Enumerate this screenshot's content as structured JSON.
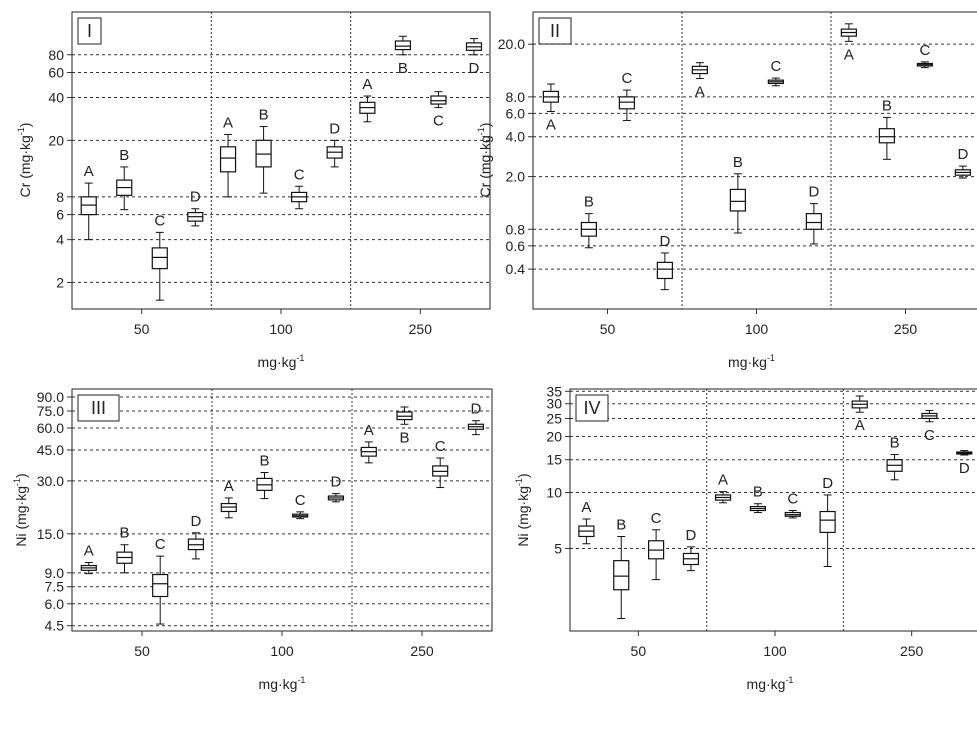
{
  "chart_data": [
    {
      "type": "boxplot",
      "panel_label": "I",
      "title": "",
      "xlabel": "mg·kg",
      "xlabel_sup": "-1",
      "ylabel": "Cr (mg·kg",
      "ylabel_sup": "-1",
      "ylabel_tail": ")",
      "yscale": "log",
      "ylim": [
        1.3,
        160
      ],
      "yticks": [
        {
          "v": 2,
          "label": "2"
        },
        {
          "v": 4,
          "label": "4"
        },
        {
          "v": 6,
          "label": "6"
        },
        {
          "v": 8,
          "label": "8"
        },
        {
          "v": 20,
          "label": "20"
        },
        {
          "v": 40,
          "label": "40"
        },
        {
          "v": 60,
          "label": "60"
        },
        {
          "v": 80,
          "label": "80"
        }
      ],
      "groups": [
        "50",
        "100",
        "250"
      ],
      "grid": "dashed",
      "boxes": [
        {
          "group": "50",
          "pos": 0,
          "letter": "A",
          "whislo": 4,
          "q1": 6,
          "med": 7,
          "q3": 8,
          "whishi": 10
        },
        {
          "group": "50",
          "pos": 1,
          "letter": "B",
          "whislo": 6.5,
          "q1": 8.2,
          "med": 9.3,
          "q3": 10.5,
          "whishi": 13
        },
        {
          "group": "50",
          "pos": 2,
          "letter": "C",
          "whislo": 1.5,
          "q1": 2.5,
          "med": 3,
          "q3": 3.5,
          "whishi": 4.5
        },
        {
          "group": "50",
          "pos": 3,
          "letter": "D",
          "whislo": 5,
          "q1": 5.4,
          "med": 5.8,
          "q3": 6.2,
          "whishi": 6.6
        },
        {
          "group": "100",
          "pos": 0,
          "letter": "A",
          "whislo": 8,
          "q1": 12,
          "med": 15,
          "q3": 18,
          "whishi": 22
        },
        {
          "group": "100",
          "pos": 1,
          "letter": "B",
          "whislo": 8.5,
          "q1": 13,
          "med": 16,
          "q3": 20,
          "whishi": 25
        },
        {
          "group": "100",
          "pos": 2,
          "letter": "C",
          "whislo": 6.6,
          "q1": 7.4,
          "med": 8,
          "q3": 8.6,
          "whishi": 9.5
        },
        {
          "group": "100",
          "pos": 3,
          "letter": "D",
          "whislo": 13,
          "q1": 15,
          "med": 16.5,
          "q3": 18,
          "whishi": 20
        },
        {
          "group": "250",
          "pos": 0,
          "letter": "A",
          "whislo": 27,
          "q1": 31,
          "med": 34,
          "q3": 37,
          "whishi": 41
        },
        {
          "group": "250",
          "pos": 1,
          "letter": "B",
          "whislo": 80,
          "q1": 87,
          "med": 92,
          "q3": 100,
          "whishi": 108
        },
        {
          "group": "250",
          "pos": 2,
          "letter": "C",
          "whislo": 34,
          "q1": 36,
          "med": 38,
          "q3": 41,
          "whishi": 44
        },
        {
          "group": "250",
          "pos": 3,
          "letter": "D",
          "whislo": 80,
          "q1": 86,
          "med": 91,
          "q3": 97,
          "whishi": 104
        }
      ]
    },
    {
      "type": "boxplot",
      "panel_label": "II",
      "title": "",
      "xlabel": "mg·kg",
      "xlabel_sup": "-1",
      "ylabel": "Cr (mg·kg",
      "ylabel_sup": "-1",
      "ylabel_tail": ")",
      "yscale": "log",
      "ylim": [
        0.2,
        35
      ],
      "yticks": [
        {
          "v": 0.4,
          "label": "0.4"
        },
        {
          "v": 0.6,
          "label": "0.6"
        },
        {
          "v": 0.8,
          "label": "0.8"
        },
        {
          "v": 2,
          "label": "2.0"
        },
        {
          "v": 4,
          "label": "4.0"
        },
        {
          "v": 6,
          "label": "6.0"
        },
        {
          "v": 8,
          "label": "8.0"
        },
        {
          "v": 20,
          "label": "20.0"
        }
      ],
      "groups": [
        "50",
        "100",
        "250"
      ],
      "grid": "dashed",
      "boxes": [
        {
          "group": "50",
          "pos": 0,
          "letter": "A",
          "whislo": 6.2,
          "q1": 7.3,
          "med": 8,
          "q3": 8.8,
          "whishi": 10
        },
        {
          "group": "50",
          "pos": 1,
          "letter": "B",
          "whislo": 0.58,
          "q1": 0.71,
          "med": 0.8,
          "q3": 0.9,
          "whishi": 1.05
        },
        {
          "group": "50",
          "pos": 2,
          "letter": "C",
          "whislo": 5.3,
          "q1": 6.5,
          "med": 7.3,
          "q3": 8,
          "whishi": 9
        },
        {
          "group": "50",
          "pos": 3,
          "letter": "D",
          "whislo": 0.28,
          "q1": 0.34,
          "med": 0.4,
          "q3": 0.45,
          "whishi": 0.53
        },
        {
          "group": "100",
          "pos": 0,
          "letter": "A",
          "whislo": 11,
          "q1": 12,
          "med": 12.8,
          "q3": 13.6,
          "whishi": 14.5
        },
        {
          "group": "100",
          "pos": 1,
          "letter": "B",
          "whislo": 0.75,
          "q1": 1.1,
          "med": 1.3,
          "q3": 1.6,
          "whishi": 2.1
        },
        {
          "group": "100",
          "pos": 2,
          "letter": "C",
          "whislo": 9.7,
          "q1": 10.1,
          "med": 10.4,
          "q3": 10.7,
          "whishi": 11.1
        },
        {
          "group": "100",
          "pos": 3,
          "letter": "D",
          "whislo": 0.62,
          "q1": 0.8,
          "med": 0.9,
          "q3": 1.05,
          "whishi": 1.25
        },
        {
          "group": "250",
          "pos": 0,
          "letter": "A",
          "whislo": 21,
          "q1": 23,
          "med": 24.5,
          "q3": 26,
          "whishi": 28.5
        },
        {
          "group": "250",
          "pos": 1,
          "letter": "B",
          "whislo": 2.7,
          "q1": 3.6,
          "med": 4,
          "q3": 4.6,
          "whishi": 5.6
        },
        {
          "group": "250",
          "pos": 2,
          "letter": "C",
          "whislo": 13.3,
          "q1": 13.7,
          "med": 14,
          "q3": 14.3,
          "whishi": 14.7
        },
        {
          "group": "250",
          "pos": 3,
          "letter": "D",
          "whislo": 1.95,
          "q1": 2.05,
          "med": 2.15,
          "q3": 2.25,
          "whishi": 2.4
        }
      ]
    },
    {
      "type": "boxplot",
      "panel_label": "III",
      "title": "",
      "xlabel": "mg·kg",
      "xlabel_sup": "-1",
      "ylabel": "Ni (mg·kg",
      "ylabel_sup": "-1",
      "ylabel_tail": ")",
      "yscale": "log",
      "ylim": [
        4.2,
        100
      ],
      "yticks": [
        {
          "v": 4.5,
          "label": "4.5"
        },
        {
          "v": 6,
          "label": "6.0"
        },
        {
          "v": 7.5,
          "label": "7.5"
        },
        {
          "v": 9,
          "label": "9.0"
        },
        {
          "v": 15,
          "label": "15.0"
        },
        {
          "v": 30,
          "label": "30.0"
        },
        {
          "v": 45,
          "label": "45.0"
        },
        {
          "v": 60,
          "label": "60.0"
        },
        {
          "v": 75,
          "label": "75.0"
        },
        {
          "v": 90,
          "label": "90.0"
        }
      ],
      "groups": [
        "50",
        "100",
        "250"
      ],
      "grid": "dashed",
      "boxes": [
        {
          "group": "50",
          "pos": 0,
          "letter": "A",
          "whislo": 8.9,
          "q1": 9.3,
          "med": 9.6,
          "q3": 9.9,
          "whishi": 10.3
        },
        {
          "group": "50",
          "pos": 1,
          "letter": "B",
          "whislo": 9,
          "q1": 10.2,
          "med": 11,
          "q3": 11.8,
          "whishi": 13
        },
        {
          "group": "50",
          "pos": 2,
          "letter": "C",
          "whislo": 4.6,
          "q1": 6.6,
          "med": 7.8,
          "q3": 8.8,
          "whishi": 11.2
        },
        {
          "group": "50",
          "pos": 3,
          "letter": "D",
          "whislo": 10.8,
          "q1": 12.2,
          "med": 13,
          "q3": 14,
          "whishi": 15.2
        },
        {
          "group": "100",
          "pos": 0,
          "letter": "A",
          "whislo": 18.5,
          "q1": 20.1,
          "med": 21.3,
          "q3": 22.3,
          "whishi": 24
        },
        {
          "group": "100",
          "pos": 1,
          "letter": "B",
          "whislo": 23.8,
          "q1": 26.5,
          "med": 28.5,
          "q3": 31,
          "whishi": 33.5
        },
        {
          "group": "100",
          "pos": 2,
          "letter": "C",
          "whislo": 18.3,
          "q1": 18.7,
          "med": 19,
          "q3": 19.4,
          "whishi": 20
        },
        {
          "group": "100",
          "pos": 3,
          "letter": "D",
          "whislo": 22.8,
          "q1": 23.4,
          "med": 24,
          "q3": 24.6,
          "whishi": 25.4
        },
        {
          "group": "250",
          "pos": 0,
          "letter": "A",
          "whislo": 38,
          "q1": 41.5,
          "med": 44,
          "q3": 46.5,
          "whishi": 50
        },
        {
          "group": "250",
          "pos": 1,
          "letter": "B",
          "whislo": 63,
          "q1": 67,
          "med": 70,
          "q3": 74,
          "whishi": 79
        },
        {
          "group": "250",
          "pos": 2,
          "letter": "C",
          "whislo": 27.5,
          "q1": 32,
          "med": 34,
          "q3": 36.5,
          "whishi": 40.5
        },
        {
          "group": "250",
          "pos": 3,
          "letter": "D",
          "whislo": 55,
          "q1": 59,
          "med": 61,
          "q3": 63,
          "whishi": 66
        }
      ]
    },
    {
      "type": "boxplot",
      "panel_label": "IV",
      "title": "",
      "xlabel": "mg·kg",
      "xlabel_sup": "-1",
      "ylabel": "Ni (mg·kg",
      "ylabel_sup": "-1",
      "ylabel_tail": ")",
      "yscale": "log",
      "ylim": [
        1.8,
        36
      ],
      "yticks": [
        {
          "v": 5,
          "label": "5"
        },
        {
          "v": 10,
          "label": "10"
        },
        {
          "v": 15,
          "label": "15"
        },
        {
          "v": 20,
          "label": "20"
        },
        {
          "v": 25,
          "label": "25"
        },
        {
          "v": 30,
          "label": "30"
        },
        {
          "v": 35,
          "label": "35"
        }
      ],
      "groups": [
        "50",
        "100",
        "250"
      ],
      "grid": "dashed",
      "boxes": [
        {
          "group": "50",
          "pos": 0,
          "letter": "A",
          "whislo": 5.3,
          "q1": 5.8,
          "med": 6.2,
          "q3": 6.6,
          "whishi": 7.2
        },
        {
          "group": "50",
          "pos": 1,
          "letter": "B",
          "whislo": 2.1,
          "q1": 3,
          "med": 3.55,
          "q3": 4.3,
          "whishi": 5.8
        },
        {
          "group": "50",
          "pos": 2,
          "letter": "C",
          "whislo": 3.4,
          "q1": 4.4,
          "med": 4.9,
          "q3": 5.5,
          "whishi": 6.3
        },
        {
          "group": "50",
          "pos": 3,
          "letter": "D",
          "whislo": 3.8,
          "q1": 4.1,
          "med": 4.4,
          "q3": 4.7,
          "whishi": 5.1
        },
        {
          "group": "100",
          "pos": 0,
          "letter": "A",
          "whislo": 8.8,
          "q1": 9.1,
          "med": 9.4,
          "q3": 9.7,
          "whishi": 10.1
        },
        {
          "group": "100",
          "pos": 1,
          "letter": "B",
          "whislo": 7.8,
          "q1": 8,
          "med": 8.2,
          "q3": 8.4,
          "whishi": 8.7
        },
        {
          "group": "100",
          "pos": 2,
          "letter": "C",
          "whislo": 7.3,
          "q1": 7.45,
          "med": 7.6,
          "q3": 7.8,
          "whishi": 8
        },
        {
          "group": "100",
          "pos": 3,
          "letter": "D",
          "whislo": 4,
          "q1": 6.1,
          "med": 7.1,
          "q3": 7.9,
          "whishi": 9.7
        },
        {
          "group": "250",
          "pos": 0,
          "letter": "A",
          "whislo": 27,
          "q1": 28.5,
          "med": 29.8,
          "q3": 31,
          "whishi": 33
        },
        {
          "group": "250",
          "pos": 1,
          "letter": "B",
          "whislo": 11.7,
          "q1": 13,
          "med": 14,
          "q3": 15,
          "whishi": 16
        },
        {
          "group": "250",
          "pos": 2,
          "letter": "C",
          "whislo": 24,
          "q1": 25,
          "med": 25.8,
          "q3": 26.6,
          "whishi": 27.6
        },
        {
          "group": "250",
          "pos": 3,
          "letter": "D",
          "whislo": 15.9,
          "q1": 16.1,
          "med": 16.3,
          "q3": 16.5,
          "whishi": 16.8
        }
      ]
    }
  ]
}
